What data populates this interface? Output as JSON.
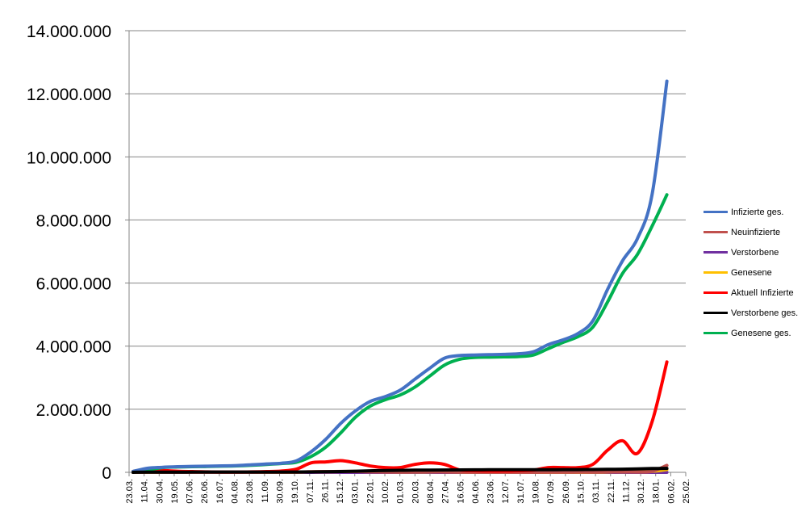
{
  "chart_data": {
    "type": "line",
    "title": "",
    "xlabel": "",
    "ylabel": "",
    "ylim": [
      0,
      14000000
    ],
    "yticks": [
      {
        "value": 0,
        "label": "0"
      },
      {
        "value": 2000000,
        "label": "2.000.000"
      },
      {
        "value": 4000000,
        "label": "4.000.000"
      },
      {
        "value": 6000000,
        "label": "6.000.000"
      },
      {
        "value": 8000000,
        "label": "8.000.000"
      },
      {
        "value": 10000000,
        "label": "10.000.000"
      },
      {
        "value": 12000000,
        "label": "12.000.000"
      },
      {
        "value": 14000000,
        "label": "14.000.000"
      }
    ],
    "grid": "horizontal",
    "legend_position": "right",
    "x": [
      "23.03.",
      "11.04.",
      "30.04.",
      "19.05.",
      "07.06.",
      "26.06.",
      "16.07.",
      "04.08.",
      "23.08.",
      "11.09.",
      "30.09.",
      "19.10.",
      "07.11.",
      "26.11.",
      "15.12.",
      "03.01.",
      "22.01.",
      "10.02.",
      "01.03.",
      "20.03.",
      "08.04.",
      "27.04.",
      "16.05.",
      "04.06.",
      "23.06.",
      "12.07.",
      "31.07.",
      "19.08.",
      "07.09.",
      "26.09.",
      "15.10.",
      "03.11.",
      "22.11.",
      "11.12.",
      "30.12.",
      "18.01.",
      "06.02.",
      "25.02."
    ],
    "series": [
      {
        "name": "Infizierte ges.",
        "color": "#4472C4",
        "values": [
          30000,
          130000,
          160000,
          180000,
          190000,
          195000,
          205000,
          215000,
          240000,
          265000,
          290000,
          360000,
          650000,
          1050000,
          1550000,
          1950000,
          2250000,
          2400000,
          2600000,
          2950000,
          3300000,
          3620000,
          3700000,
          3720000,
          3730000,
          3740000,
          3760000,
          3820000,
          4050000,
          4200000,
          4400000,
          4800000,
          5800000,
          6700000,
          7400000,
          8800000,
          12400000,
          null
        ]
      },
      {
        "name": "Neuinfizierte",
        "color": "#C0504D",
        "values": [
          3000,
          5000,
          2000,
          1000,
          500,
          500,
          500,
          600,
          1200,
          2000,
          3000,
          8000,
          20000,
          25000,
          28000,
          25000,
          15000,
          8000,
          8000,
          12000,
          15000,
          10000,
          5000,
          1000,
          500,
          500,
          600,
          1200,
          2500,
          3000,
          4000,
          8000,
          12000,
          15000,
          10000,
          30000,
          220000,
          null
        ]
      },
      {
        "name": "Verstorbene",
        "color": "#7030A0",
        "values": [
          100,
          200,
          100,
          50,
          30,
          20,
          20,
          20,
          20,
          30,
          40,
          100,
          300,
          600,
          900,
          900,
          600,
          300,
          200,
          200,
          250,
          200,
          100,
          50,
          20,
          10,
          10,
          10,
          20,
          30,
          40,
          80,
          150,
          200,
          150,
          200,
          300,
          null
        ]
      },
      {
        "name": "Genesene",
        "color": "#FFC000",
        "values": [
          1000,
          3000,
          3000,
          2000,
          1000,
          800,
          700,
          600,
          800,
          1500,
          2000,
          5000,
          15000,
          20000,
          25000,
          28000,
          22000,
          15000,
          10000,
          10000,
          12000,
          14000,
          10000,
          4000,
          1000,
          500,
          500,
          800,
          1500,
          2500,
          3000,
          5000,
          9000,
          13000,
          12000,
          30000,
          90000,
          null
        ]
      },
      {
        "name": "Aktuell Infizierte",
        "color": "#FF0000",
        "values": [
          30000,
          90000,
          60000,
          35000,
          25000,
          15000,
          10000,
          10000,
          15000,
          25000,
          40000,
          100000,
          300000,
          330000,
          370000,
          300000,
          200000,
          150000,
          150000,
          250000,
          300000,
          250000,
          80000,
          50000,
          40000,
          40000,
          50000,
          70000,
          150000,
          150000,
          150000,
          250000,
          700000,
          1000000,
          600000,
          1600000,
          3500000,
          null
        ]
      },
      {
        "name": "Verstorbene ges.",
        "color": "#000000",
        "values": [
          1000,
          5000,
          7000,
          8000,
          9000,
          9000,
          9000,
          9300,
          9400,
          9500,
          9800,
          10500,
          13000,
          19000,
          25000,
          36000,
          48000,
          58000,
          63000,
          68000,
          72000,
          75000,
          78000,
          80000,
          81000,
          82000,
          83000,
          84000,
          85000,
          86000,
          87000,
          90000,
          95000,
          101000,
          110000,
          120000,
          125000,
          null
        ]
      },
      {
        "name": "Genesene ges.",
        "color": "#00B050",
        "values": [
          10000,
          80000,
          150000,
          170000,
          180000,
          185000,
          195000,
          205000,
          225000,
          250000,
          280000,
          320000,
          500000,
          800000,
          1250000,
          1750000,
          2100000,
          2300000,
          2450000,
          2700000,
          3050000,
          3400000,
          3580000,
          3640000,
          3650000,
          3660000,
          3670000,
          3720000,
          3920000,
          4120000,
          4300000,
          4600000,
          5400000,
          6300000,
          6900000,
          7800000,
          8800000,
          null
        ]
      }
    ]
  }
}
